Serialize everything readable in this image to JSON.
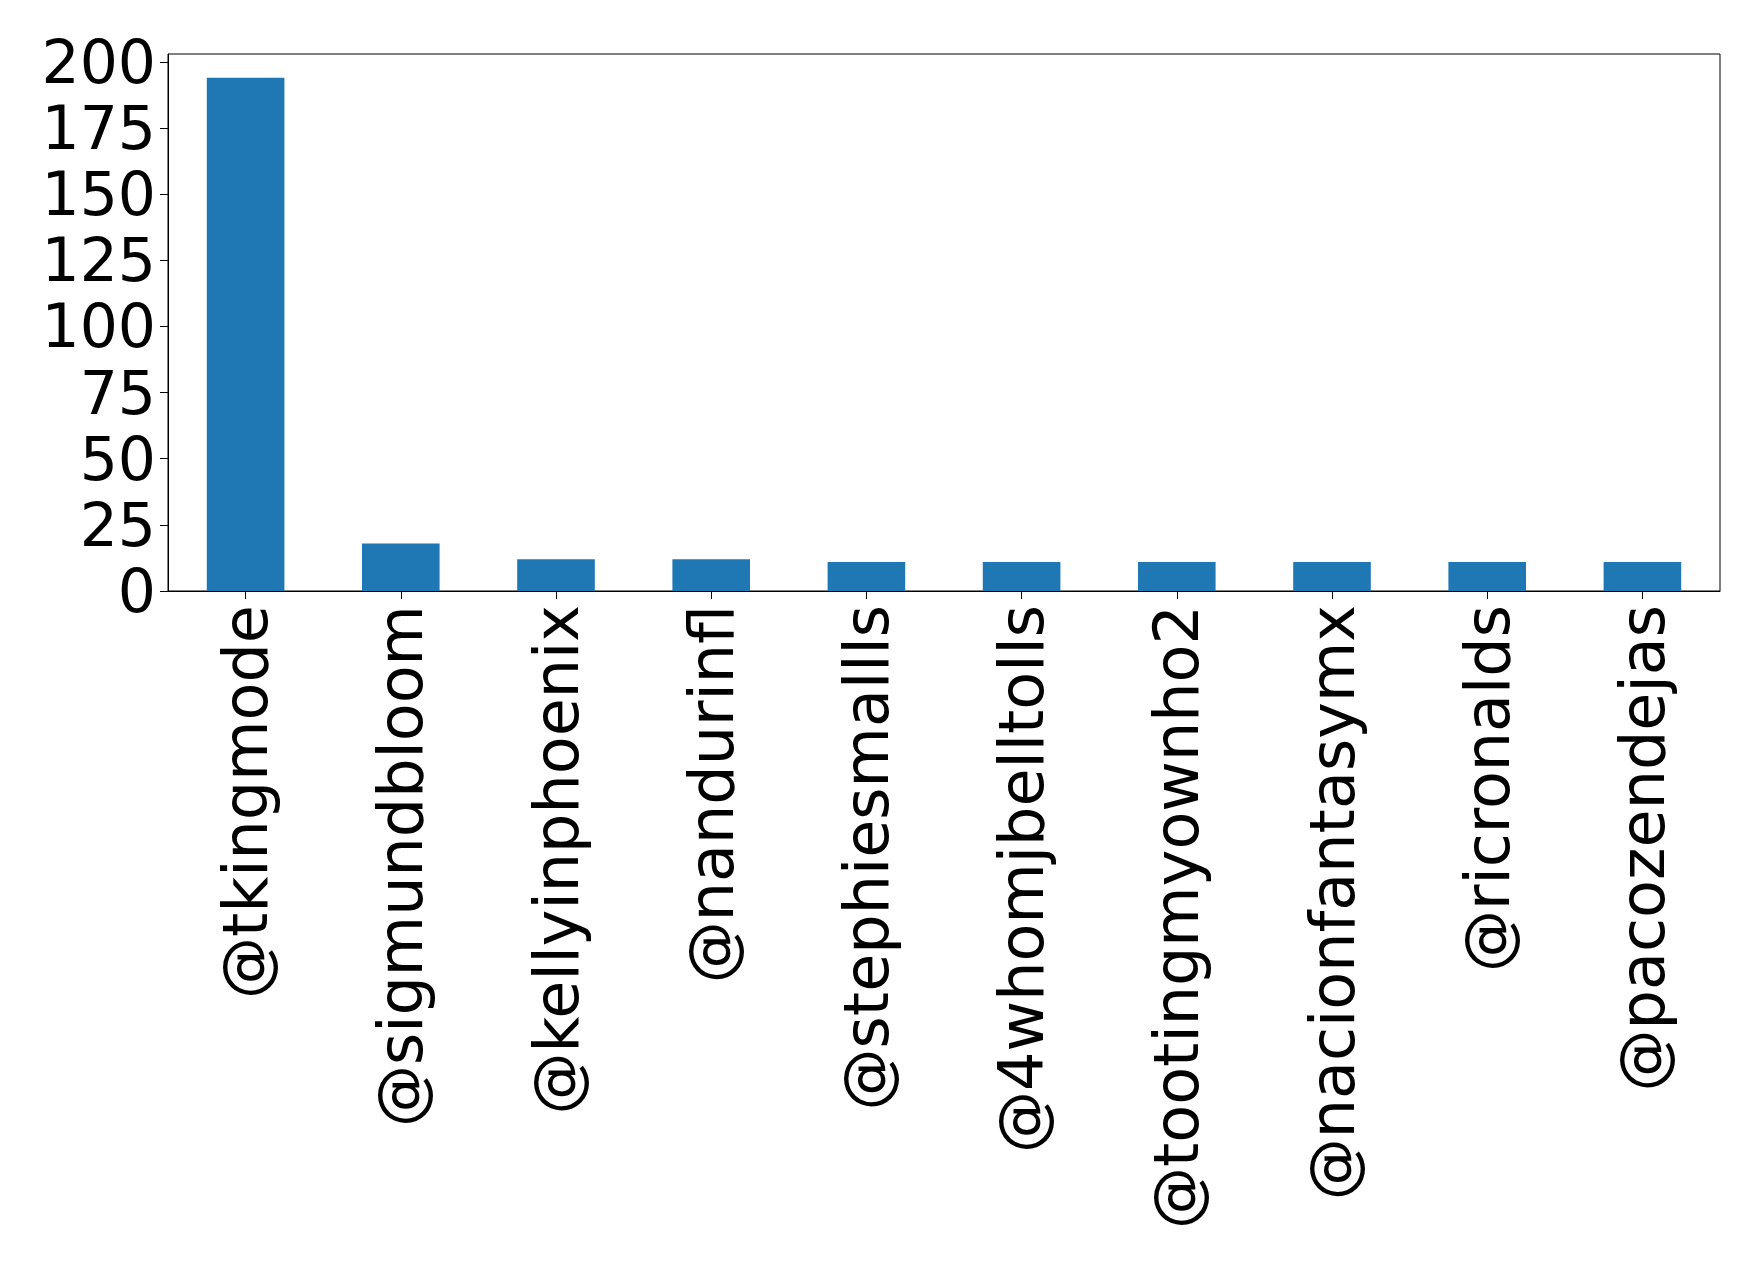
{
  "chart_data": {
    "type": "bar",
    "categories": [
      "@tkingmode",
      "@sigmundbloom",
      "@kellyinphoenix",
      "@nandurinfl",
      "@stephiesmallls",
      "@4whomjbelltolls",
      "@tootingmyownho2",
      "@nacionfantasymx",
      "@ricronalds",
      "@pacozendejas"
    ],
    "values": [
      194,
      18,
      12,
      12,
      11,
      11,
      11,
      11,
      11,
      11
    ],
    "color": "#1f77b4",
    "ylim": [
      0,
      203
    ],
    "yticks": [
      0,
      25,
      50,
      75,
      100,
      125,
      150,
      175,
      200
    ],
    "grid": false
  }
}
